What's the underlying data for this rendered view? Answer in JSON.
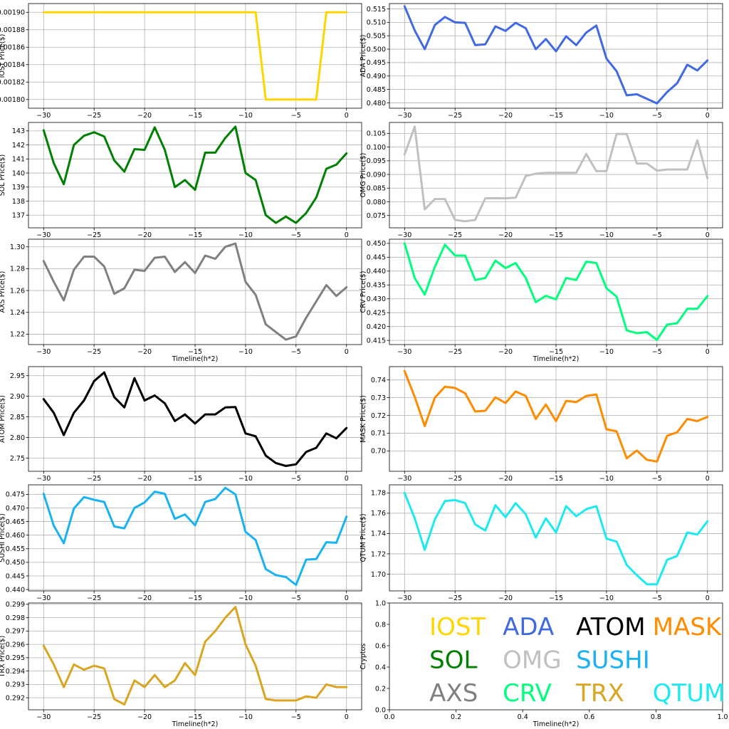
{
  "chart_data": [
    {
      "id": "iost",
      "type": "line",
      "ylabel": "IOST Price($)",
      "xlabel": "",
      "color": "#ffd500",
      "xlim": [
        -31.5,
        1.5
      ],
      "ylim": [
        0.00179,
        0.00191
      ],
      "xticks": [
        "−30",
        "−25",
        "−20",
        "−15",
        "−10",
        "−5",
        "0"
      ],
      "yticks": [
        "0.00180",
        "0.00182",
        "0.00184",
        "0.00186",
        "0.00188",
        "0.00190"
      ],
      "ytick_values": [
        0.0018,
        0.00182,
        0.00184,
        0.00186,
        0.00188,
        0.0019
      ],
      "x": [
        -30,
        -29,
        -28,
        -27,
        -26,
        -25,
        -24,
        -23,
        -22,
        -21,
        -20,
        -19,
        -18,
        -17,
        -16,
        -15,
        -14,
        -13,
        -12,
        -11,
        -10,
        -9,
        -8,
        -7,
        -6,
        -5,
        -4,
        -3,
        -2,
        -1,
        0
      ],
      "values": [
        0.0019,
        0.0019,
        0.0019,
        0.0019,
        0.0019,
        0.0019,
        0.0019,
        0.0019,
        0.0019,
        0.0019,
        0.0019,
        0.0019,
        0.0019,
        0.0019,
        0.0019,
        0.0019,
        0.0019,
        0.0019,
        0.0019,
        0.0019,
        0.0019,
        0.0019,
        0.0018,
        0.0018,
        0.0018,
        0.0018,
        0.0018,
        0.0018,
        0.0019,
        0.0019,
        0.0019
      ]
    },
    {
      "id": "ada",
      "type": "line",
      "ylabel": "ADA  Price($)",
      "xlabel": "",
      "color": "#4169e1",
      "xlim": [
        -31.5,
        1.5
      ],
      "ylim": [
        0.478,
        0.517
      ],
      "xticks": [
        "−30",
        "−25",
        "−20",
        "−15",
        "−10",
        "−5",
        "0"
      ],
      "yticks": [
        "0.480",
        "0.485",
        "0.490",
        "0.495",
        "0.500",
        "0.505",
        "0.510",
        "0.515"
      ],
      "ytick_values": [
        0.48,
        0.485,
        0.49,
        0.495,
        0.5,
        0.505,
        0.51,
        0.515
      ],
      "x": [
        -30,
        -29,
        -28,
        -27,
        -26,
        -25,
        -24,
        -23,
        -22,
        -21,
        -20,
        -19,
        -18,
        -17,
        -16,
        -15,
        -14,
        -13,
        -12,
        -11,
        -10,
        -9,
        -8,
        -7,
        -6,
        -5,
        -4,
        -3,
        -2,
        -1,
        0
      ],
      "values": [
        0.516,
        0.507,
        0.5,
        0.509,
        0.512,
        0.51,
        0.5098,
        0.5015,
        0.5018,
        0.5085,
        0.5068,
        0.5098,
        0.5078,
        0.5,
        0.5038,
        0.4992,
        0.5048,
        0.5015,
        0.5062,
        0.5088,
        0.4965,
        0.4918,
        0.4828,
        0.4832,
        0.4815,
        0.4798,
        0.484,
        0.4873,
        0.4942,
        0.4921,
        0.4958
      ]
    },
    {
      "id": "sol",
      "type": "line",
      "ylabel": "SOL Price($)",
      "xlabel": "",
      "color": "#008000",
      "xlim": [
        -31.5,
        1.5
      ],
      "ylim": [
        136.1,
        143.6
      ],
      "xticks": [
        "−30",
        "−25",
        "−20",
        "−15",
        "−10",
        "−5",
        "0"
      ],
      "yticks": [
        "137",
        "138",
        "139",
        "140",
        "141",
        "142",
        "143"
      ],
      "ytick_values": [
        137,
        138,
        139,
        140,
        141,
        142,
        143
      ],
      "x": [
        -30,
        -29,
        -28,
        -27,
        -26,
        -25,
        -24,
        -23,
        -22,
        -21,
        -20,
        -19,
        -18,
        -17,
        -16,
        -15,
        -14,
        -13,
        -12,
        -11,
        -10,
        -9,
        -8,
        -7,
        -6,
        -5,
        -4,
        -3,
        -2,
        -1,
        0
      ],
      "values": [
        143.05,
        140.7,
        139.2,
        142.0,
        142.65,
        142.9,
        142.6,
        140.9,
        140.1,
        141.7,
        141.65,
        143.25,
        141.65,
        139.0,
        139.5,
        138.8,
        141.45,
        141.45,
        142.5,
        143.3,
        140.0,
        139.5,
        137.0,
        136.45,
        136.9,
        136.45,
        137.15,
        138.25,
        140.3,
        140.6,
        141.4
      ]
    },
    {
      "id": "omg",
      "type": "line",
      "ylabel": "OMG  Price($)",
      "xlabel": "",
      "color": "#c0c0c0",
      "xlim": [
        -31.5,
        1.5
      ],
      "ylim": [
        0.0705,
        0.109
      ],
      "xticks": [
        "−30",
        "−25",
        "−20",
        "−15",
        "−10",
        "−5",
        "0"
      ],
      "yticks": [
        "0.075",
        "0.080",
        "0.085",
        "0.090",
        "0.095",
        "0.100",
        "0.105"
      ],
      "ytick_values": [
        0.075,
        0.08,
        0.085,
        0.09,
        0.095,
        0.1,
        0.105
      ],
      "x": [
        -30,
        -29,
        -28,
        -27,
        -26,
        -25,
        -24,
        -23,
        -22,
        -21,
        -20,
        -19,
        -18,
        -17,
        -16,
        -15,
        -14,
        -13,
        -12,
        -11,
        -10,
        -9,
        -8,
        -7,
        -6,
        -5,
        -4,
        -3,
        -2,
        -1,
        0
      ],
      "values": [
        0.0973,
        0.1075,
        0.0772,
        0.081,
        0.081,
        0.0734,
        0.0729,
        0.0734,
        0.0813,
        0.0813,
        0.0813,
        0.0815,
        0.0894,
        0.0903,
        0.0906,
        0.0906,
        0.0906,
        0.0906,
        0.0975,
        0.0912,
        0.0912,
        0.1048,
        0.1048,
        0.094,
        0.094,
        0.0914,
        0.0918,
        0.0918,
        0.0918,
        0.1025,
        0.0886
      ]
    },
    {
      "id": "axs",
      "type": "line",
      "ylabel": "AXS Price($)",
      "xlabel": "Timeline(h*2)",
      "color": "#808080",
      "xlim": [
        -31.5,
        1.5
      ],
      "ylim": [
        1.2105,
        1.307
      ],
      "xticks": [
        "−30",
        "−25",
        "−20",
        "−15",
        "−10",
        "−5",
        "0"
      ],
      "yticks": [
        "1.22",
        "1.24",
        "1.26",
        "1.28",
        "1.30"
      ],
      "ytick_values": [
        1.22,
        1.24,
        1.26,
        1.28,
        1.3
      ],
      "x": [
        -30,
        -29,
        -28,
        -27,
        -26,
        -25,
        -24,
        -23,
        -22,
        -21,
        -20,
        -19,
        -18,
        -17,
        -16,
        -15,
        -14,
        -13,
        -12,
        -11,
        -10,
        -9,
        -8,
        -7,
        -6,
        -5,
        -4,
        -3,
        -2,
        -1,
        0
      ],
      "values": [
        1.287,
        1.268,
        1.251,
        1.279,
        1.291,
        1.291,
        1.282,
        1.257,
        1.262,
        1.279,
        1.278,
        1.29,
        1.291,
        1.277,
        1.286,
        1.276,
        1.292,
        1.289,
        1.3,
        1.303,
        1.268,
        1.256,
        1.229,
        1.222,
        1.215,
        1.218,
        1.235,
        1.25,
        1.265,
        1.255,
        1.263
      ]
    },
    {
      "id": "crv",
      "type": "line",
      "ylabel": "CRV  Price($)",
      "xlabel": "Timeline(h*2)",
      "color": "#00ff7f",
      "xlim": [
        -31.5,
        1.5
      ],
      "ylim": [
        0.4135,
        0.4515
      ],
      "xticks": [
        "−30",
        "−25",
        "−20",
        "−15",
        "−10",
        "−5",
        "0"
      ],
      "yticks": [
        "0.415",
        "0.420",
        "0.425",
        "0.430",
        "0.435",
        "0.440",
        "0.445",
        "0.450"
      ],
      "ytick_values": [
        0.415,
        0.42,
        0.425,
        0.43,
        0.435,
        0.44,
        0.445,
        0.45
      ],
      "x": [
        -30,
        -29,
        -28,
        -27,
        -26,
        -25,
        -24,
        -23,
        -22,
        -21,
        -20,
        -19,
        -18,
        -17,
        -16,
        -15,
        -14,
        -13,
        -12,
        -11,
        -10,
        -9,
        -8,
        -7,
        -6,
        -5,
        -4,
        -3,
        -2,
        -1,
        0
      ],
      "values": [
        0.45,
        0.4375,
        0.4315,
        0.4415,
        0.4495,
        0.4456,
        0.4456,
        0.4368,
        0.4375,
        0.4438,
        0.4411,
        0.4429,
        0.4375,
        0.4288,
        0.4311,
        0.4298,
        0.4375,
        0.4368,
        0.4434,
        0.4429,
        0.4338,
        0.4308,
        0.4186,
        0.4176,
        0.418,
        0.4152,
        0.4207,
        0.4212,
        0.4264,
        0.4264,
        0.431
      ]
    },
    {
      "id": "atom",
      "type": "line",
      "ylabel": "ATOM  Price($)",
      "xlabel": "",
      "color": "#000000",
      "xlim": [
        -31.5,
        1.5
      ],
      "ylim": [
        2.718,
        2.972
      ],
      "xticks": [
        "−30",
        "−25",
        "−20",
        "−15",
        "−10",
        "−5",
        "0"
      ],
      "yticks": [
        "2.75",
        "2.80",
        "2.85",
        "2.90",
        "2.95"
      ],
      "ytick_values": [
        2.75,
        2.8,
        2.85,
        2.9,
        2.95
      ],
      "x": [
        -30,
        -29,
        -28,
        -27,
        -26,
        -25,
        -24,
        -23,
        -22,
        -21,
        -20,
        -19,
        -18,
        -17,
        -16,
        -15,
        -14,
        -13,
        -12,
        -11,
        -10,
        -9,
        -8,
        -7,
        -6,
        -5,
        -4,
        -3,
        -2,
        -1,
        0
      ],
      "values": [
        2.893,
        2.86,
        2.806,
        2.86,
        2.89,
        2.937,
        2.958,
        2.898,
        2.873,
        2.944,
        2.89,
        2.902,
        2.883,
        2.84,
        2.856,
        2.834,
        2.856,
        2.856,
        2.873,
        2.874,
        2.81,
        2.803,
        2.756,
        2.738,
        2.731,
        2.735,
        2.765,
        2.775,
        2.81,
        2.798,
        2.823
      ]
    },
    {
      "id": "mask",
      "type": "line",
      "ylabel": "MASK  Price($)",
      "xlabel": "",
      "color": "#ff8c00",
      "xlim": [
        -31.5,
        1.5
      ],
      "ylim": [
        0.6885,
        0.7475
      ],
      "xticks": [
        "−30",
        "−25",
        "−20",
        "−15",
        "−10",
        "−5",
        "0"
      ],
      "yticks": [
        "0.70",
        "0.71",
        "0.72",
        "0.73",
        "0.74"
      ],
      "ytick_values": [
        0.7,
        0.71,
        0.72,
        0.73,
        0.74
      ],
      "x": [
        -30,
        -29,
        -28,
        -27,
        -26,
        -25,
        -24,
        -23,
        -22,
        -21,
        -20,
        -19,
        -18,
        -17,
        -16,
        -15,
        -14,
        -13,
        -12,
        -11,
        -10,
        -9,
        -8,
        -7,
        -6,
        -5,
        -4,
        -3,
        -2,
        -1,
        0
      ],
      "values": [
        0.745,
        0.7305,
        0.714,
        0.73,
        0.7362,
        0.7355,
        0.7325,
        0.7222,
        0.7226,
        0.7302,
        0.727,
        0.7335,
        0.731,
        0.718,
        0.7262,
        0.7168,
        0.7282,
        0.7275,
        0.731,
        0.7318,
        0.7122,
        0.711,
        0.6958,
        0.7002,
        0.695,
        0.694,
        0.7085,
        0.7105,
        0.718,
        0.7168,
        0.7192
      ]
    },
    {
      "id": "sushi",
      "type": "line",
      "ylabel": "SUSHI  Price($)",
      "xlabel": "",
      "color": "#1ab2f0",
      "xlim": [
        -31.5,
        1.5
      ],
      "ylim": [
        0.4395,
        0.4785
      ],
      "xticks": [
        "−30",
        "−25",
        "−20",
        "−15",
        "−10",
        "−5",
        "0"
      ],
      "yticks": [
        "0.440",
        "0.445",
        "0.450",
        "0.455",
        "0.460",
        "0.465",
        "0.470",
        "0.475"
      ],
      "ytick_values": [
        0.44,
        0.445,
        0.45,
        0.455,
        0.46,
        0.465,
        0.47,
        0.475
      ],
      "x": [
        -30,
        -29,
        -28,
        -27,
        -26,
        -25,
        -24,
        -23,
        -22,
        -21,
        -20,
        -19,
        -18,
        -17,
        -16,
        -15,
        -14,
        -13,
        -12,
        -11,
        -10,
        -9,
        -8,
        -7,
        -6,
        -5,
        -4,
        -3,
        -2,
        -1,
        0
      ],
      "values": [
        0.4752,
        0.4635,
        0.457,
        0.4698,
        0.474,
        0.473,
        0.4722,
        0.4632,
        0.4625,
        0.47,
        0.472,
        0.476,
        0.4752,
        0.466,
        0.4676,
        0.4636,
        0.4722,
        0.4733,
        0.4774,
        0.475,
        0.4612,
        0.4582,
        0.4475,
        0.4453,
        0.4446,
        0.4417,
        0.451,
        0.4512,
        0.4574,
        0.4572,
        0.4668
      ]
    },
    {
      "id": "qtum",
      "type": "line",
      "ylabel": "QTUM Price($)",
      "xlabel": "",
      "color": "#1de9f0",
      "xlim": [
        -31.5,
        1.5
      ],
      "ylim": [
        1.6835,
        1.788
      ],
      "xticks": [
        "−30",
        "−25",
        "−20",
        "−15",
        "−10",
        "−5",
        "0"
      ],
      "yticks": [
        "1.70",
        "1.72",
        "1.74",
        "1.76",
        "1.78"
      ],
      "ytick_values": [
        1.7,
        1.72,
        1.74,
        1.76,
        1.78
      ],
      "x": [
        -30,
        -29,
        -28,
        -27,
        -26,
        -25,
        -24,
        -23,
        -22,
        -21,
        -20,
        -19,
        -18,
        -17,
        -16,
        -15,
        -14,
        -13,
        -12,
        -11,
        -10,
        -9,
        -8,
        -7,
        -6,
        -5,
        -4,
        -3,
        -2,
        -1,
        0
      ],
      "values": [
        1.78,
        1.755,
        1.724,
        1.754,
        1.772,
        1.773,
        1.77,
        1.749,
        1.743,
        1.768,
        1.756,
        1.77,
        1.759,
        1.736,
        1.755,
        1.741,
        1.767,
        1.757,
        1.764,
        1.767,
        1.735,
        1.732,
        1.709,
        1.699,
        1.69,
        1.69,
        1.714,
        1.718,
        1.741,
        1.739,
        1.752
      ]
    },
    {
      "id": "trx",
      "type": "line",
      "ylabel": "TRX Price($)",
      "xlabel": "Timeline(h*2)",
      "color": "#daa520",
      "xlim": [
        -31.5,
        1.5
      ],
      "ylim": [
        0.2911,
        0.2991
      ],
      "xticks": [
        "−30",
        "−25",
        "−20",
        "−15",
        "−10",
        "−5",
        "0"
      ],
      "yticks": [
        "0.292",
        "0.293",
        "0.294",
        "0.295",
        "0.296",
        "0.297",
        "0.298",
        "0.299"
      ],
      "ytick_values": [
        0.292,
        0.293,
        0.294,
        0.295,
        0.296,
        0.297,
        0.298,
        0.299
      ],
      "x": [
        -30,
        -29,
        -28,
        -27,
        -26,
        -25,
        -24,
        -23,
        -22,
        -21,
        -20,
        -19,
        -18,
        -17,
        -16,
        -15,
        -14,
        -13,
        -12,
        -11,
        -10,
        -9,
        -8,
        -7,
        -6,
        -5,
        -4,
        -3,
        -2,
        -1,
        0
      ],
      "values": [
        0.2959,
        0.2945,
        0.2928,
        0.2945,
        0.2941,
        0.2944,
        0.2942,
        0.2919,
        0.2915,
        0.2933,
        0.2928,
        0.2937,
        0.2928,
        0.2933,
        0.2946,
        0.2937,
        0.2962,
        0.297,
        0.298,
        0.2988,
        0.296,
        0.2944,
        0.2919,
        0.2918,
        0.2918,
        0.2918,
        0.2921,
        0.292,
        0.293,
        0.2928,
        0.2928
      ]
    },
    {
      "id": "legend",
      "type": "scatter",
      "ylabel": "Cryptos",
      "xlabel": "Timeline(h*2)",
      "xlim": [
        0,
        1
      ],
      "ylim": [
        0,
        1
      ],
      "xticks": [
        "0.0",
        "0.2",
        "0.4",
        "0.6",
        "0.8",
        "1.0"
      ],
      "xtick_values": [
        0,
        0.2,
        0.4,
        0.6,
        0.8,
        1.0
      ],
      "yticks": [
        "0.0",
        "0.2",
        "0.4",
        "0.6",
        "0.8",
        "1.0"
      ],
      "ytick_values": [
        0,
        0.2,
        0.4,
        0.6,
        0.8,
        1.0
      ],
      "labels": [
        {
          "text": "IOST",
          "color": "#ffd500"
        },
        {
          "text": "ADA",
          "color": "#4169e1"
        },
        {
          "text": "ATOM",
          "color": "#000000"
        },
        {
          "text": "MASK",
          "color": "#ff8c00"
        },
        {
          "text": "SOL",
          "color": "#008000"
        },
        {
          "text": "OMG",
          "color": "#c0c0c0"
        },
        {
          "text": "SUSHI",
          "color": "#1ab2f0"
        },
        {
          "text": "AXS",
          "color": "#808080"
        },
        {
          "text": "CRV",
          "color": "#00ff7f"
        },
        {
          "text": "TRX",
          "color": "#daa520"
        },
        {
          "text": "QTUM",
          "color": "#1de9f0"
        }
      ]
    }
  ]
}
